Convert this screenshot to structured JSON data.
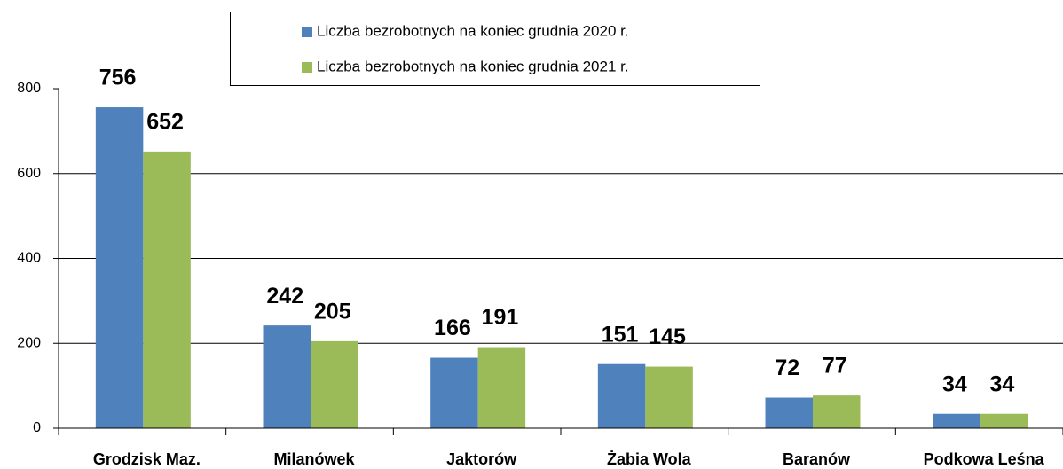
{
  "chart_data": {
    "type": "bar",
    "categories": [
      "Grodzisk Maz.",
      "Milanówek",
      "Jaktorów",
      "Żabia Wola",
      "Baranów",
      "Podkowa Leśna"
    ],
    "series": [
      {
        "name": "Liczba bezrobotnych na koniec grudnia 2020 r.",
        "color": "#4f81bd",
        "values": [
          756,
          242,
          166,
          151,
          72,
          34
        ]
      },
      {
        "name": "Liczba bezrobotnych na koniec grudnia 2021 r.",
        "color": "#9bbb59",
        "values": [
          652,
          205,
          191,
          145,
          77,
          34
        ]
      }
    ],
    "ylim": [
      0,
      800
    ],
    "yticks": [
      0,
      200,
      400,
      600,
      800
    ],
    "grid": true,
    "legend": "top"
  }
}
